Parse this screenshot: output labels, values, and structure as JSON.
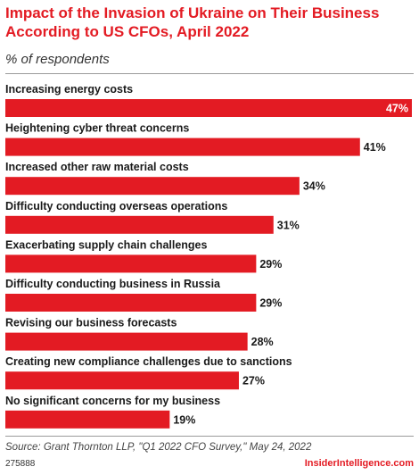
{
  "header": {
    "title": "Impact of the Invasion of Ukraine on Their Business According to US CFOs, April 2022",
    "subtitle": "% of respondents"
  },
  "footer": {
    "source": "Source: Grant Thornton LLP, \"Q1 2022 CFO Survey,\" May 24, 2022",
    "chart_id": "275888",
    "brand": "InsiderIntelligence.com"
  },
  "colors": {
    "bar": "#e31b23",
    "title": "#e31b23",
    "value_outside": "#1a1a1a",
    "value_inside": "#ffffff"
  },
  "chart_data": {
    "type": "bar",
    "orientation": "horizontal",
    "title": "Impact of the Invasion of Ukraine on Their Business According to US CFOs, April 2022",
    "subtitle": "% of respondents",
    "categories": [
      "Increasing energy costs",
      "Heightening cyber threat concerns",
      "Increased other raw material costs",
      "Difficulty conducting overseas operations",
      "Exacerbating supply chain challenges",
      "Difficulty conducting business in Russia",
      "Revising our business forecasts",
      "Creating new compliance challenges due to sanctions",
      "No significant concerns for my business"
    ],
    "values": [
      47,
      41,
      34,
      31,
      29,
      29,
      28,
      27,
      19
    ],
    "value_labels": [
      "47%",
      "41%",
      "34%",
      "31%",
      "29%",
      "29%",
      "28%",
      "27%",
      "19%"
    ],
    "xlim": [
      0,
      47
    ],
    "grid": false,
    "legend": "none"
  }
}
